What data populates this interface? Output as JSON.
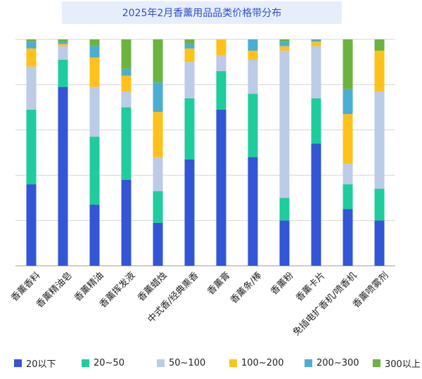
{
  "chart_data": {
    "type": "bar",
    "stacked": "100%",
    "title": "2025年2月香薰用品品类价格带分布",
    "xlabel": "",
    "ylabel": "",
    "ylim": [
      0,
      100
    ],
    "grid": true,
    "legend_position": "bottom",
    "categories": [
      "香薰香料",
      "香薰精油皂",
      "香薰精油",
      "香薰挥发液",
      "香薰蜡烛",
      "中式香/经典熏香",
      "香薰膏",
      "香薰条/棒",
      "香薰粉",
      "香薰卡片",
      "免插电扩香机/喷香机",
      "香薰喷雾剂"
    ],
    "series": [
      {
        "name": "20以下",
        "color": "#3355d6",
        "values": [
          36,
          79,
          27,
          38,
          19,
          47,
          69,
          48,
          20,
          54,
          25,
          20
        ]
      },
      {
        "name": "20~50",
        "color": "#1fcc9c",
        "values": [
          33,
          12,
          30,
          32,
          14,
          27,
          17,
          28,
          10,
          20,
          11,
          14
        ]
      },
      {
        "name": "50~100",
        "color": "#bccbe6",
        "values": [
          19,
          6,
          22,
          7,
          15,
          16,
          7,
          15,
          65,
          23,
          9,
          43
        ]
      },
      {
        "name": "100~200",
        "color": "#ffc21a",
        "values": [
          8,
          1,
          13,
          7,
          20,
          6,
          7,
          4,
          2,
          2,
          22,
          18
        ]
      },
      {
        "name": "200~300",
        "color": "#4aaed3",
        "values": [
          3,
          1,
          5,
          3,
          13,
          2,
          0,
          5,
          2,
          1,
          11,
          0
        ]
      },
      {
        "name": "300以上",
        "color": "#6db33f",
        "values": [
          1,
          1,
          3,
          13,
          19,
          2,
          0,
          0,
          1,
          0,
          22,
          5
        ]
      }
    ]
  }
}
